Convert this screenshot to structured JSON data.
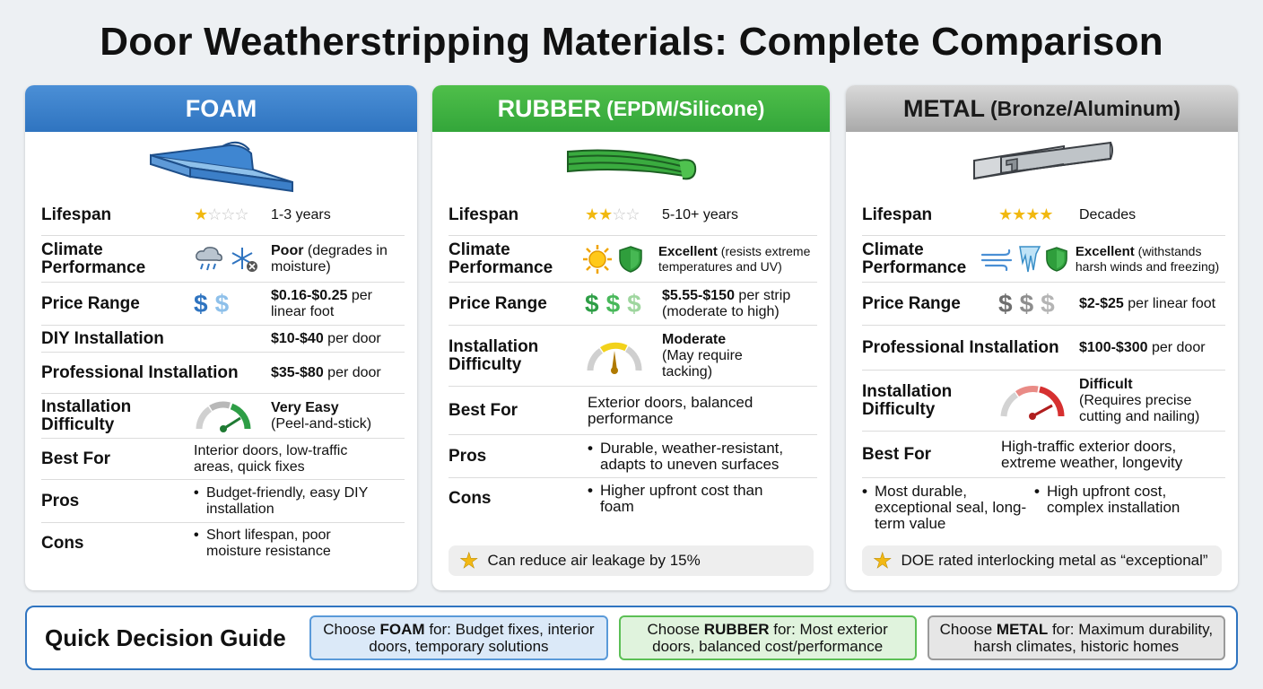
{
  "title": "Door Weatherstripping Materials: Complete Comparison",
  "colors": {
    "foam": "#2f74c0",
    "rubber": "#33a63a",
    "metal": "#a9a9a9",
    "star": "#f1b80f"
  },
  "foam": {
    "header": "FOAM",
    "image_icon": "foam-tape-strip-icon",
    "lifespan": {
      "label": "Lifespan",
      "rating": 1,
      "value": "1-3 years"
    },
    "climate": {
      "label": "Climate Performance",
      "icons": [
        "rain-cloud-icon",
        "snowflake-x-icon"
      ],
      "value_strong": "Poor",
      "value": " (degrades in moisture)"
    },
    "price": {
      "label": "Price Range",
      "icon": "two-dollar-icon",
      "value_strong": "$0.16-$0.25",
      "value": " per linear foot"
    },
    "diy": {
      "label": "DIY Installation",
      "value_strong": "$10-$40",
      "value": " per door"
    },
    "pro": {
      "label": "Professional Installation",
      "value_strong": "$35-$80",
      "value": " per door"
    },
    "difficulty": {
      "label": "Installation Difficulty",
      "icon": "gauge-easy-icon",
      "value_strong": "Very Easy",
      "value": "(Peel-and-stick)"
    },
    "best": {
      "label": "Best For",
      "value": "Interior doors, low-traffic areas, quick fixes"
    },
    "pros": {
      "label": "Pros",
      "value": "Budget-friendly, easy DIY installation"
    },
    "cons": {
      "label": "Cons",
      "value": "Short lifespan, poor moisture resistance"
    }
  },
  "rubber": {
    "header": "RUBBER",
    "header_sub": "(EPDM/Silicone)",
    "image_icon": "rubber-seal-strip-icon",
    "lifespan": {
      "label": "Lifespan",
      "rating": 2,
      "value": "5-10+ years"
    },
    "climate": {
      "label": "Climate Performance",
      "icons": [
        "sun-icon",
        "shield-icon"
      ],
      "value_strong": "Excellent",
      "value": " (resists extreme temperatures and UV)"
    },
    "price": {
      "label": "Price Range",
      "icon": "three-dollar-icon",
      "value_strong": "$5.55-$150",
      "value": " per strip (moderate to high)"
    },
    "difficulty": {
      "label": "Installation Difficulty",
      "icon": "gauge-moderate-icon",
      "value_strong": "Moderate",
      "value": "(May require tacking)"
    },
    "best": {
      "label": "Best For",
      "value": "Exterior doors, balanced performance"
    },
    "pros": {
      "label": "Pros",
      "value": "Durable, weather-resistant, adapts to uneven surfaces"
    },
    "cons": {
      "label": "Cons",
      "value": "Higher upfront cost than foam"
    },
    "note": "Can reduce air leakage by 15%"
  },
  "metal": {
    "header": "METAL",
    "header_sub": "(Bronze/Aluminum)",
    "image_icon": "metal-interlock-strip-icon",
    "lifespan": {
      "label": "Lifespan",
      "rating": 4,
      "value": "Decades"
    },
    "climate": {
      "label": "Climate Performance",
      "icons": [
        "wind-icon",
        "icicle-icon",
        "shield-icon"
      ],
      "value_strong": "Excellent",
      "value": " (withstands harsh winds and freezing)"
    },
    "price": {
      "label": "Price Range",
      "icon": "three-dollar-icon",
      "value_strong": "$2-$25",
      "value": " per linear foot"
    },
    "pro": {
      "label": "Professional Installation",
      "value_strong": "$100-$300",
      "value": " per door"
    },
    "difficulty": {
      "label": "Installation Difficulty",
      "icon": "gauge-difficult-icon",
      "value_strong": "Difficult",
      "value": "(Requires precise cutting and nailing)"
    },
    "best": {
      "label": "Best For",
      "value": "High-traffic exterior doors, extreme weather, longevity"
    },
    "pros": {
      "value": "Most durable, exceptional seal, long-term value"
    },
    "cons": {
      "value": "High upfront cost, complex installation"
    },
    "note": "DOE rated interlocking metal as “exceptional”"
  },
  "guide": {
    "title": "Quick Decision Guide",
    "foam": {
      "pre": "Choose ",
      "strong": "FOAM",
      "post": " for: Budget fixes, interior doors, temporary solutions"
    },
    "rubber": {
      "pre": "Choose ",
      "strong": "RUBBER",
      "post": " for: Most exterior doors, balanced cost/performance"
    },
    "metal": {
      "pre": "Choose ",
      "strong": "METAL",
      "post": " for: Maximum durability, harsh climates, historic homes"
    }
  }
}
